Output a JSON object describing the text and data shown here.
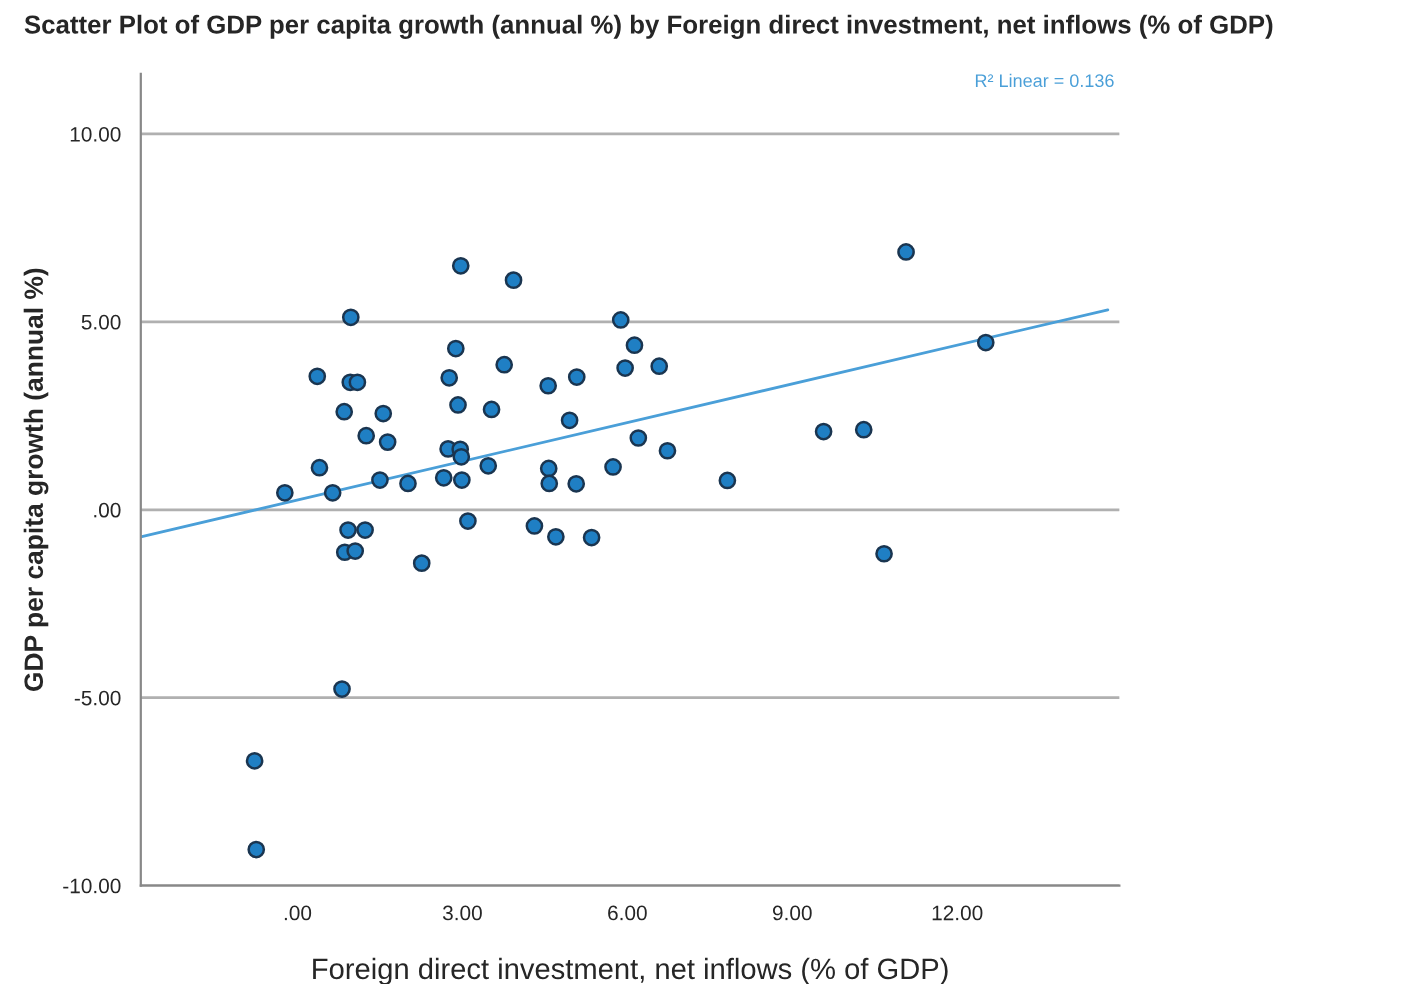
{
  "chart_data": {
    "type": "scatter",
    "title": "Scatter Plot of GDP per capita growth (annual %) by Foreign direct investment, net inflows (% of GDP)",
    "xlabel": "Foreign direct investment, net inflows (% of GDP)",
    "ylabel": "GDP per capita growth (annual %)",
    "annotations": [
      "R² Linear = 0.136"
    ],
    "series": [
      {
        "color": "#1f7fc4",
        "marker": "circle",
        "x": [
          -0.23,
          0.4,
          0.64,
          0.36,
          0.97,
          0.96,
          1.09,
          0.85,
          1.25,
          1.56,
          1.64,
          1.5,
          2.01,
          0.92,
          1.23,
          0.86,
          1.05,
          2.26,
          2.97,
          3.93,
          5.88,
          6.13,
          2.88,
          2.76,
          3.76,
          5.96,
          6.58,
          4.56,
          5.08,
          2.92,
          3.53,
          4.95,
          2.74,
          2.96,
          2.98,
          6.2,
          6.73,
          2.66,
          2.99,
          3.47,
          4.57,
          4.58,
          5.07,
          5.74,
          7.82,
          3.1,
          4.31,
          4.7,
          5.35,
          11.07,
          12.52,
          9.57,
          10.3,
          10.67,
          0.81,
          -0.78,
          -0.75
        ],
        "values": [
          0.45,
          1.12,
          0.45,
          3.55,
          5.12,
          3.39,
          3.39,
          2.61,
          1.97,
          2.56,
          1.8,
          0.79,
          0.7,
          -0.54,
          -0.54,
          -1.13,
          -1.1,
          -1.42,
          6.49,
          6.11,
          5.05,
          4.38,
          4.29,
          3.51,
          3.86,
          3.77,
          3.82,
          3.3,
          3.53,
          2.79,
          2.67,
          2.38,
          1.62,
          1.61,
          1.41,
          1.91,
          1.57,
          0.85,
          0.79,
          1.17,
          1.1,
          0.7,
          0.69,
          1.14,
          0.78,
          -0.3,
          -0.43,
          -0.72,
          -0.74,
          6.86,
          4.45,
          2.08,
          2.13,
          -1.17,
          -4.77,
          -6.68,
          -9.04
        ]
      },
      {
        "type": "line",
        "color": "#4a9fd8",
        "x": [
          -2.85,
          14.74
        ],
        "values": [
          -0.72,
          5.32
        ]
      }
    ],
    "xlim": [
      -2.85,
      14.95
    ],
    "ylim": [
      -10,
      11.6
    ],
    "xticks": [
      {
        "value": 0,
        "label": ".00"
      },
      {
        "value": 3,
        "label": "3.00"
      },
      {
        "value": 6,
        "label": "6.00"
      },
      {
        "value": 9,
        "label": "9.00"
      },
      {
        "value": 12,
        "label": "12.00"
      }
    ],
    "yticks": [
      {
        "value": -10,
        "label": "-10.00"
      },
      {
        "value": -5,
        "label": "-5.00"
      },
      {
        "value": 0,
        "label": ".00"
      },
      {
        "value": 5,
        "label": "5.00"
      },
      {
        "value": 10,
        "label": "10.00"
      }
    ],
    "grid": "y",
    "legend": false
  }
}
